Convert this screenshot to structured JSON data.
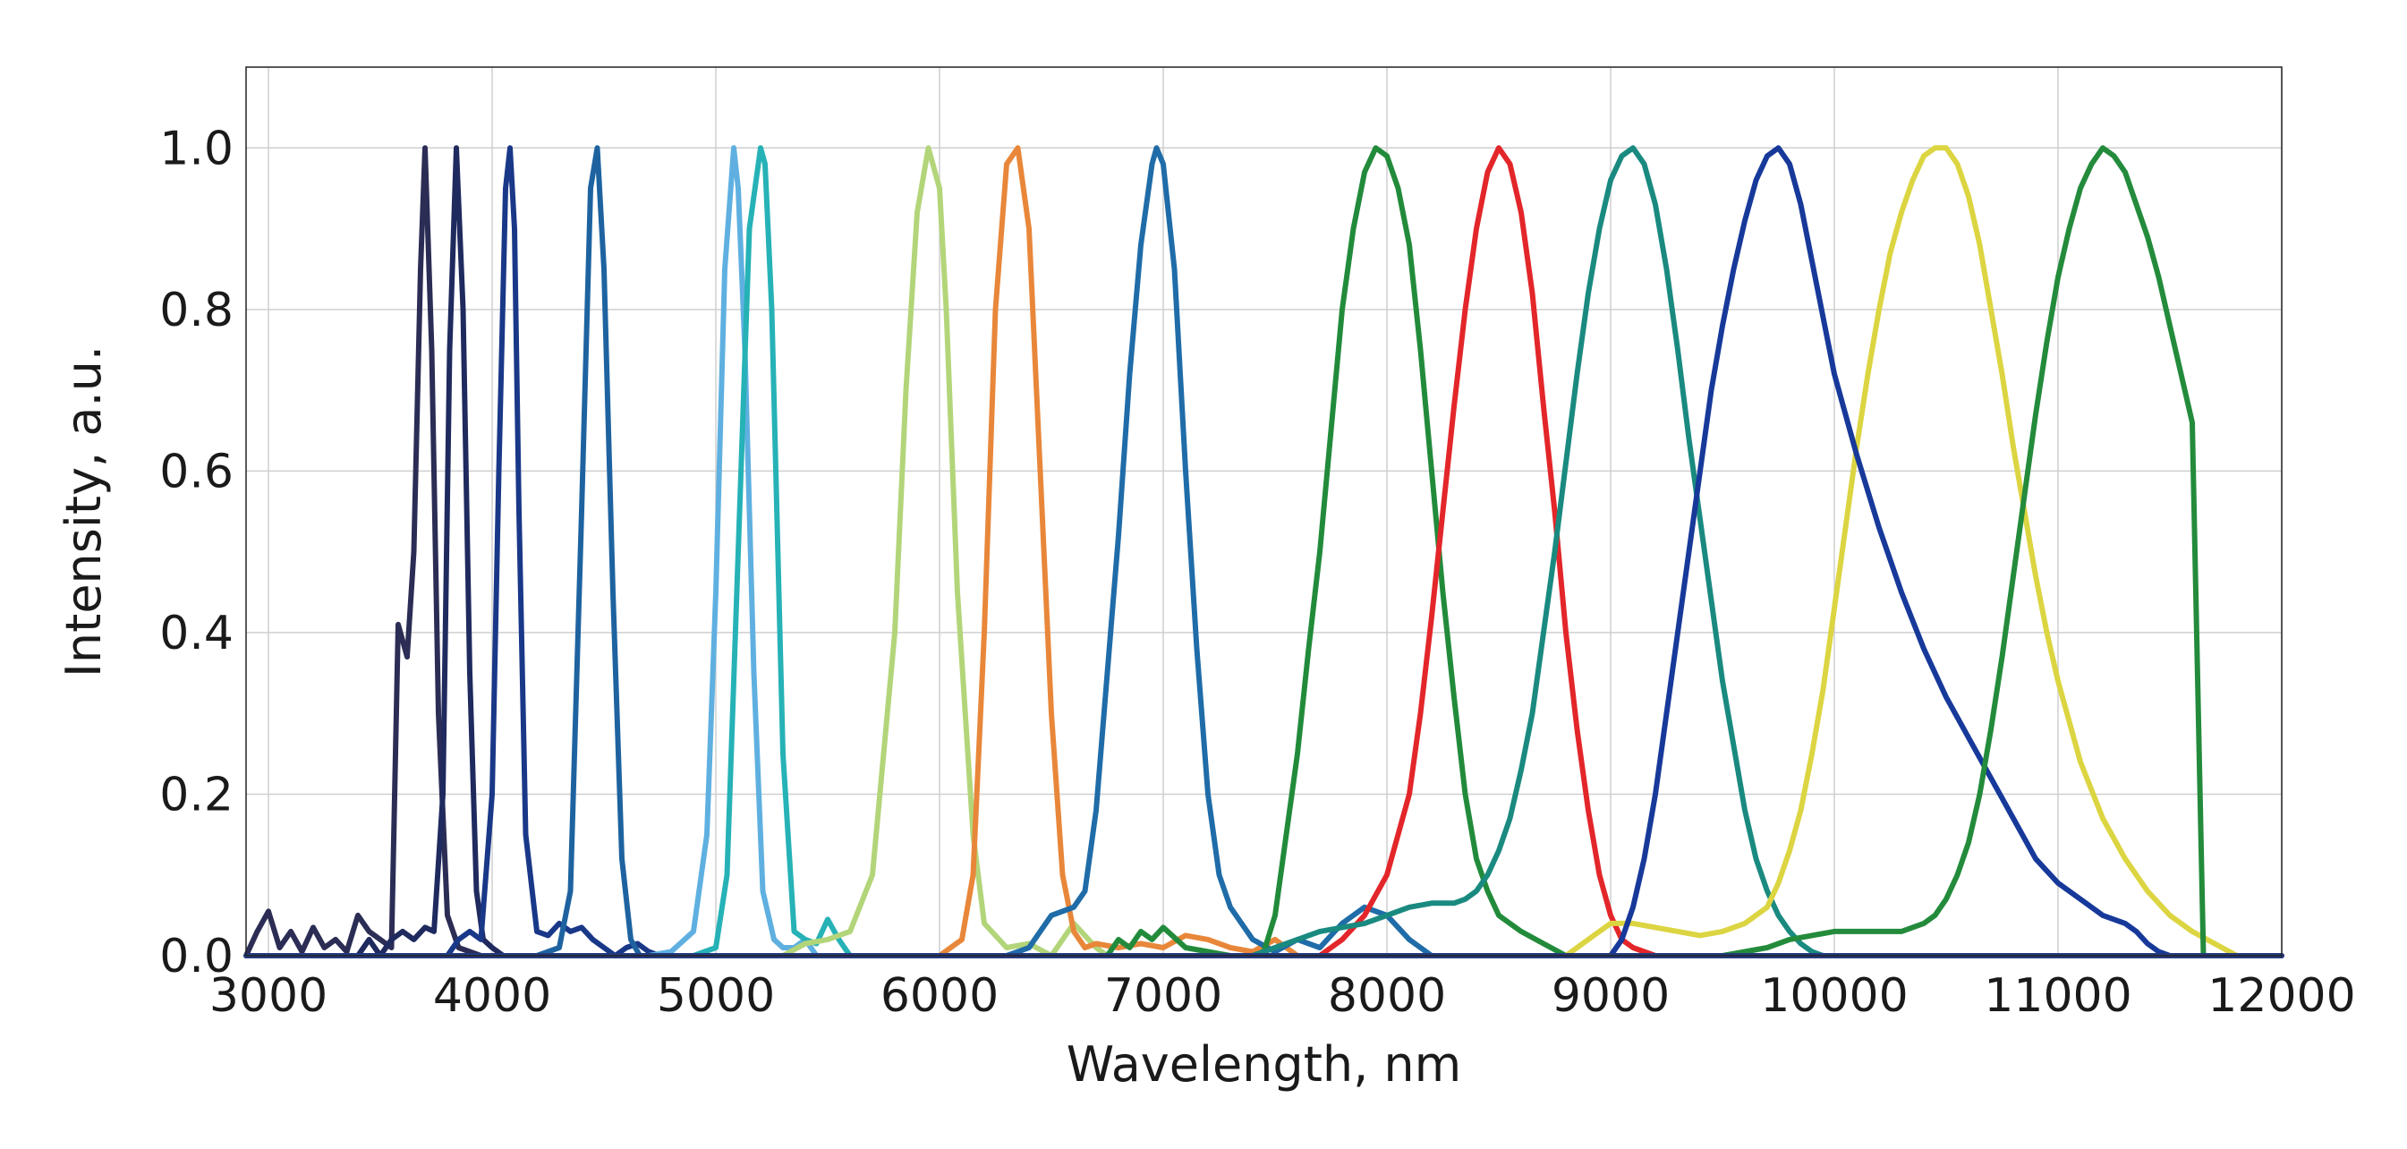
{
  "chart_data": {
    "type": "line",
    "title": "",
    "xlabel": "Wavelength, nm",
    "ylabel": "Intensity, a.u.",
    "xlim": [
      2900,
      12000
    ],
    "ylim": [
      0,
      1.1
    ],
    "xticks": [
      "3000",
      "4000",
      "5000",
      "6000",
      "7000",
      "8000",
      "9000",
      "10000",
      "11000",
      "12000"
    ],
    "yticks": [
      "0.0",
      "0.2",
      "0.4",
      "0.6",
      "0.8",
      "1.0"
    ],
    "grid": true,
    "legend": "none",
    "series": [
      {
        "color": "#2b2d55",
        "x": [
          2900,
          2950,
          3000,
          3050,
          3100,
          3150,
          3200,
          3250,
          3300,
          3350,
          3400,
          3450,
          3500,
          3550,
          3580,
          3620,
          3650,
          3680,
          3700,
          3730,
          3760,
          3800,
          3850,
          3900,
          3950,
          4000
        ],
        "y": [
          0.0,
          0.03,
          0.055,
          0.01,
          0.03,
          0.005,
          0.035,
          0.01,
          0.02,
          0.005,
          0.05,
          0.03,
          0.02,
          0.01,
          0.41,
          0.37,
          0.5,
          0.85,
          1.0,
          0.75,
          0.3,
          0.05,
          0.01,
          0.005,
          0.0,
          0.0
        ]
      },
      {
        "color": "#1f2a5e",
        "x": [
          3400,
          3450,
          3500,
          3550,
          3600,
          3650,
          3700,
          3740,
          3780,
          3810,
          3840,
          3870,
          3900,
          3930,
          3960,
          4000,
          4050,
          4100,
          4150,
          4200
        ],
        "y": [
          0.0,
          0.02,
          0.0,
          0.02,
          0.03,
          0.02,
          0.035,
          0.03,
          0.2,
          0.75,
          1.0,
          0.8,
          0.35,
          0.08,
          0.02,
          0.01,
          0.0,
          0.0,
          0.0,
          0.0
        ]
      },
      {
        "color": "#1a3888",
        "x": [
          3800,
          3850,
          3900,
          3950,
          4000,
          4030,
          4060,
          4080,
          4100,
          4120,
          4150,
          4200,
          4250,
          4300,
          4350,
          4400,
          4450,
          4500,
          4550,
          4600,
          4650,
          4700,
          4750
        ],
        "y": [
          0.0,
          0.02,
          0.03,
          0.02,
          0.2,
          0.6,
          0.95,
          1.0,
          0.9,
          0.55,
          0.15,
          0.03,
          0.025,
          0.04,
          0.03,
          0.035,
          0.02,
          0.01,
          0.0,
          0.01,
          0.015,
          0.005,
          0.0
        ]
      },
      {
        "color": "#1e63a0",
        "x": [
          4200,
          4300,
          4350,
          4400,
          4440,
          4470,
          4500,
          4540,
          4580,
          4620,
          4660,
          4700
        ],
        "y": [
          0.0,
          0.01,
          0.08,
          0.55,
          0.95,
          1.0,
          0.85,
          0.45,
          0.12,
          0.02,
          0.0,
          0.0
        ]
      },
      {
        "color": "#5fb0e0",
        "x": [
          4700,
          4800,
          4900,
          4960,
          5000,
          5040,
          5080,
          5100,
          5130,
          5170,
          5210,
          5260,
          5300,
          5350,
          5400,
          5450
        ],
        "y": [
          0.0,
          0.005,
          0.03,
          0.15,
          0.45,
          0.85,
          1.0,
          0.95,
          0.75,
          0.35,
          0.08,
          0.02,
          0.01,
          0.01,
          0.02,
          0.0
        ]
      },
      {
        "color": "#26b2b6",
        "x": [
          4900,
          5000,
          5050,
          5100,
          5150,
          5200,
          5220,
          5250,
          5300,
          5350,
          5400,
          5450,
          5500,
          5550,
          5600
        ],
        "y": [
          0.0,
          0.01,
          0.1,
          0.5,
          0.9,
          1.0,
          0.98,
          0.8,
          0.25,
          0.03,
          0.02,
          0.015,
          0.045,
          0.02,
          0.0
        ]
      },
      {
        "color": "#b3d57a",
        "x": [
          5300,
          5400,
          5500,
          5600,
          5700,
          5800,
          5850,
          5900,
          5950,
          6000,
          6030,
          6080,
          6150,
          6200,
          6300,
          6400,
          6500,
          6600,
          6700,
          6750
        ],
        "y": [
          0.0,
          0.015,
          0.02,
          0.03,
          0.1,
          0.4,
          0.7,
          0.92,
          1.0,
          0.95,
          0.8,
          0.45,
          0.15,
          0.04,
          0.01,
          0.015,
          0.0,
          0.04,
          0.01,
          0.0
        ]
      },
      {
        "color": "#e8873a",
        "x": [
          6000,
          6100,
          6150,
          6200,
          6250,
          6300,
          6350,
          6400,
          6450,
          6500,
          6550,
          6600,
          6650,
          6700,
          6800,
          6900,
          7000,
          7100,
          7200,
          7300,
          7400,
          7500,
          7600
        ],
        "y": [
          0.0,
          0.02,
          0.1,
          0.4,
          0.8,
          0.98,
          1.0,
          0.9,
          0.6,
          0.3,
          0.1,
          0.03,
          0.01,
          0.015,
          0.01,
          0.015,
          0.01,
          0.025,
          0.02,
          0.01,
          0.005,
          0.02,
          0.0
        ]
      },
      {
        "color": "#1f6ca8",
        "x": [
          6300,
          6400,
          6500,
          6600,
          6650,
          6700,
          6750,
          6800,
          6850,
          6900,
          6950,
          6970,
          7000,
          7050,
          7100,
          7150,
          7200,
          7250,
          7300,
          7400,
          7500,
          7600,
          7700,
          7800,
          7900,
          8000,
          8100,
          8200
        ],
        "y": [
          0.0,
          0.01,
          0.05,
          0.06,
          0.08,
          0.18,
          0.35,
          0.52,
          0.72,
          0.88,
          0.98,
          1.0,
          0.98,
          0.85,
          0.6,
          0.38,
          0.2,
          0.1,
          0.06,
          0.02,
          0.005,
          0.02,
          0.01,
          0.04,
          0.06,
          0.05,
          0.02,
          0.0
        ]
      },
      {
        "color": "#228b3b",
        "x": [
          6750,
          6800,
          6850,
          6900,
          6950,
          7000,
          7100,
          7200,
          7300,
          7400,
          7450,
          7500,
          7550,
          7600,
          7650,
          7700,
          7750,
          7800,
          7850,
          7900,
          7950,
          8000,
          8050,
          8100,
          8150,
          8200,
          8250,
          8300,
          8350,
          8400,
          8450,
          8500,
          8600,
          8700,
          8800
        ],
        "y": [
          0.0,
          0.02,
          0.01,
          0.03,
          0.02,
          0.035,
          0.01,
          0.005,
          0.0,
          0.0,
          0.005,
          0.05,
          0.15,
          0.25,
          0.38,
          0.5,
          0.65,
          0.8,
          0.9,
          0.97,
          1.0,
          0.99,
          0.95,
          0.88,
          0.75,
          0.6,
          0.45,
          0.32,
          0.2,
          0.12,
          0.08,
          0.05,
          0.03,
          0.015,
          0.0
        ]
      },
      {
        "color": "#e3262a",
        "x": [
          7700,
          7800,
          7900,
          8000,
          8100,
          8150,
          8200,
          8250,
          8300,
          8350,
          8400,
          8450,
          8500,
          8550,
          8600,
          8650,
          8700,
          8750,
          8800,
          8850,
          8900,
          8950,
          9000,
          9050,
          9100,
          9200,
          9300,
          9400,
          9600,
          10000,
          11000,
          12000
        ],
        "y": [
          0.0,
          0.02,
          0.05,
          0.1,
          0.2,
          0.3,
          0.42,
          0.55,
          0.68,
          0.8,
          0.9,
          0.97,
          1.0,
          0.98,
          0.92,
          0.82,
          0.68,
          0.55,
          0.4,
          0.28,
          0.18,
          0.1,
          0.05,
          0.02,
          0.01,
          0.0,
          0.0,
          0.0,
          0.0,
          0.0,
          0.0,
          0.0
        ]
      },
      {
        "color": "#1a8a80",
        "x": [
          7400,
          7500,
          7600,
          7700,
          7800,
          7900,
          8000,
          8100,
          8200,
          8300,
          8350,
          8400,
          8450,
          8500,
          8550,
          8600,
          8650,
          8700,
          8750,
          8800,
          8850,
          8900,
          8950,
          9000,
          9050,
          9100,
          9150,
          9200,
          9250,
          9300,
          9350,
          9400,
          9450,
          9500,
          9550,
          9600,
          9650,
          9700,
          9750,
          9800,
          9850,
          9900,
          9950,
          10000,
          10050,
          10100
        ],
        "y": [
          0.0,
          0.01,
          0.02,
          0.03,
          0.035,
          0.04,
          0.05,
          0.06,
          0.065,
          0.065,
          0.07,
          0.08,
          0.1,
          0.13,
          0.17,
          0.23,
          0.3,
          0.4,
          0.5,
          0.61,
          0.72,
          0.82,
          0.9,
          0.96,
          0.99,
          1.0,
          0.98,
          0.93,
          0.85,
          0.75,
          0.64,
          0.54,
          0.44,
          0.34,
          0.26,
          0.18,
          0.12,
          0.08,
          0.05,
          0.03,
          0.015,
          0.005,
          0.0,
          0.0,
          0.0,
          0.0
        ]
      },
      {
        "color": "#dcd542",
        "x": [
          8800,
          8900,
          9000,
          9100,
          9200,
          9300,
          9400,
          9500,
          9600,
          9700,
          9750,
          9800,
          9850,
          9900,
          9950,
          10000,
          10050,
          10100,
          10150,
          10200,
          10250,
          10300,
          10350,
          10400,
          10450,
          10500,
          10550,
          10600,
          10650,
          10700,
          10750,
          10800,
          10850,
          10900,
          10950,
          11000,
          11100,
          11200,
          11300,
          11400,
          11500,
          11600,
          11700,
          11800
        ],
        "y": [
          0.0,
          0.02,
          0.04,
          0.04,
          0.035,
          0.03,
          0.025,
          0.03,
          0.04,
          0.06,
          0.09,
          0.13,
          0.18,
          0.25,
          0.33,
          0.43,
          0.53,
          0.63,
          0.72,
          0.8,
          0.87,
          0.92,
          0.96,
          0.99,
          1.0,
          1.0,
          0.98,
          0.94,
          0.88,
          0.8,
          0.72,
          0.63,
          0.55,
          0.47,
          0.4,
          0.34,
          0.24,
          0.17,
          0.12,
          0.08,
          0.05,
          0.03,
          0.015,
          0.0
        ]
      },
      {
        "color": "#17399a",
        "x": [
          8900,
          9000,
          9050,
          9100,
          9150,
          9200,
          9250,
          9300,
          9350,
          9400,
          9450,
          9500,
          9550,
          9600,
          9650,
          9700,
          9750,
          9800,
          9850,
          9900,
          9950,
          10000,
          10100,
          10200,
          10300,
          10400,
          10500,
          10600,
          10700,
          10800,
          10900,
          11000,
          11100,
          11200,
          11300,
          11350,
          11400,
          11450,
          11500,
          11600,
          11800
        ],
        "y": [
          0.0,
          0.0,
          0.02,
          0.06,
          0.12,
          0.2,
          0.3,
          0.4,
          0.5,
          0.6,
          0.7,
          0.78,
          0.85,
          0.91,
          0.96,
          0.99,
          1.0,
          0.98,
          0.93,
          0.86,
          0.79,
          0.72,
          0.62,
          0.53,
          0.45,
          0.38,
          0.32,
          0.27,
          0.22,
          0.17,
          0.12,
          0.09,
          0.07,
          0.05,
          0.04,
          0.03,
          0.015,
          0.005,
          0.0,
          0.0,
          0.0
        ]
      },
      {
        "color": "#238b3b",
        "x": [
          9500,
          9600,
          9700,
          9800,
          9900,
          10000,
          10100,
          10200,
          10300,
          10400,
          10450,
          10500,
          10550,
          10600,
          10650,
          10700,
          10750,
          10800,
          10850,
          10900,
          10950,
          11000,
          11050,
          11100,
          11150,
          11200,
          11250,
          11300,
          11350,
          11400,
          11450,
          11500,
          11550,
          11600,
          11650,
          11700,
          11750,
          11800,
          11850,
          11900
        ],
        "y": [
          0.0,
          0.005,
          0.01,
          0.02,
          0.025,
          0.03,
          0.03,
          0.03,
          0.03,
          0.04,
          0.05,
          0.07,
          0.1,
          0.14,
          0.2,
          0.28,
          0.37,
          0.47,
          0.57,
          0.67,
          0.76,
          0.84,
          0.9,
          0.95,
          0.98,
          1.0,
          0.99,
          0.97,
          0.93,
          0.89,
          0.84,
          0.78,
          0.72,
          0.66,
          0.0,
          0.0,
          0.0,
          0.0,
          0.0,
          0.0
        ]
      },
      {
        "color": "#243a80",
        "x": [
          2900,
          12000
        ],
        "y": [
          0.0,
          0.0
        ]
      }
    ]
  }
}
